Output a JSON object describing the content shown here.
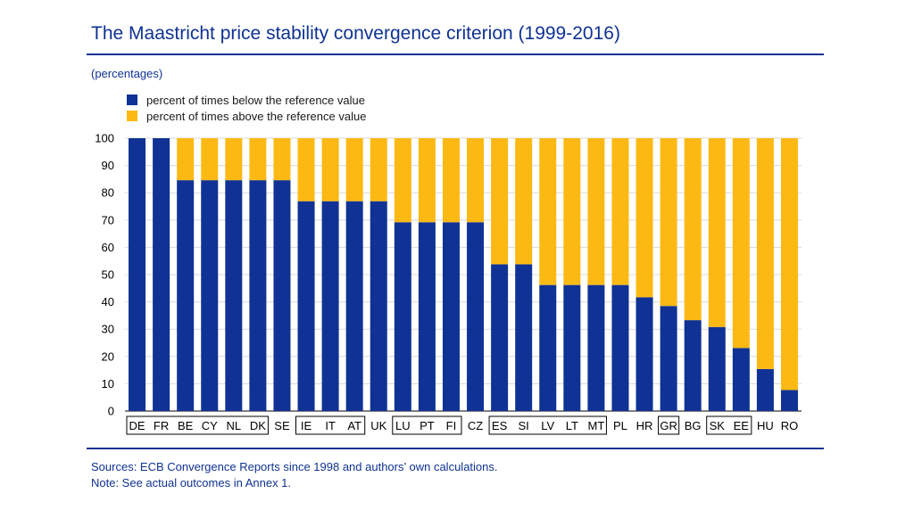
{
  "title": "The Maastricht price stability convergence criterion (1999-2016)",
  "unit_label": "(percentages)",
  "colors": {
    "below": "#0f3294",
    "above": "#fdb913",
    "accent": "#0f3294",
    "grid": "#d9d9d9"
  },
  "legend": [
    {
      "label": "percent of times below the reference value",
      "color": "#0f3294"
    },
    {
      "label": "percent of times above the reference value",
      "color": "#fdb913"
    }
  ],
  "chart_data": {
    "type": "bar",
    "stacked": true,
    "title": "The Maastricht price stability convergence criterion (1999-2016)",
    "ylabel": "(percentages)",
    "xlabel": "",
    "ylim": [
      0,
      100
    ],
    "yticks": [
      0,
      10,
      20,
      30,
      40,
      50,
      60,
      70,
      80,
      90,
      100
    ],
    "grid": true,
    "legend_position": "top-left",
    "categories": [
      "DE",
      "FR",
      "BE",
      "CY",
      "NL",
      "DK",
      "SE",
      "IE",
      "IT",
      "AT",
      "UK",
      "LU",
      "PT",
      "FI",
      "CZ",
      "ES",
      "SI",
      "LV",
      "LT",
      "MT",
      "PL",
      "HR",
      "GR",
      "BG",
      "SK",
      "EE",
      "HU",
      "RO"
    ],
    "boxed_groups": [
      [
        0,
        5
      ],
      [
        7,
        9
      ],
      [
        11,
        13
      ],
      [
        15,
        19
      ],
      [
        22,
        22
      ],
      [
        24,
        25
      ]
    ],
    "series": [
      {
        "name": "percent of times below the reference value",
        "values": [
          100,
          100,
          84.6,
          84.6,
          84.6,
          84.6,
          84.6,
          76.9,
          76.9,
          76.9,
          76.9,
          69.2,
          69.2,
          69.2,
          69.2,
          53.8,
          53.8,
          46.2,
          46.2,
          46.2,
          46.2,
          41.7,
          38.5,
          33.3,
          30.8,
          23.1,
          15.4,
          7.7
        ]
      },
      {
        "name": "percent of times above the reference value",
        "values": [
          0,
          0,
          15.4,
          15.4,
          15.4,
          15.4,
          15.4,
          23.1,
          23.1,
          23.1,
          23.1,
          30.8,
          30.8,
          30.8,
          30.8,
          46.2,
          46.2,
          53.8,
          53.8,
          53.8,
          53.8,
          58.3,
          61.5,
          66.7,
          69.2,
          76.9,
          84.6,
          92.3
        ]
      }
    ]
  },
  "notes": {
    "sources": "Sources: ECB Convergence Reports since 1998 and authors’ own calculations.",
    "note": "Note: See actual outcomes in Annex 1."
  }
}
